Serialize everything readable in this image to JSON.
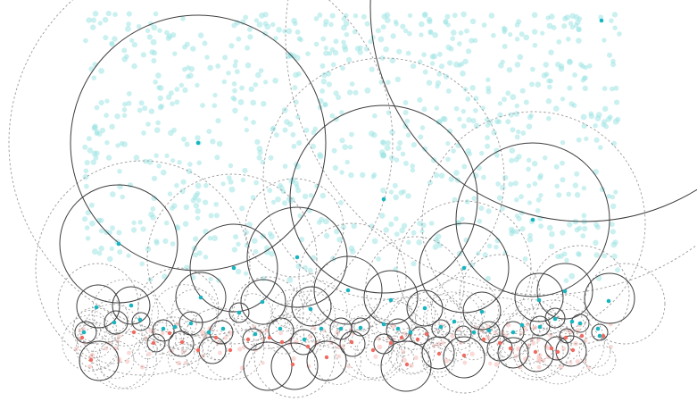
{
  "figure": {
    "kind": "circle-packing point cloud",
    "labels": []
  },
  "colors": {
    "background": "#ffffff",
    "scatter_faint": "#9fe3e3",
    "teal_point": "#16b5bf",
    "red_point": "#ef6b61",
    "red_faint": "#f9c9c4",
    "solid_ring": "#3d3d3d",
    "dashed_ring": "#9a9a9a"
  },
  "legend": []
}
